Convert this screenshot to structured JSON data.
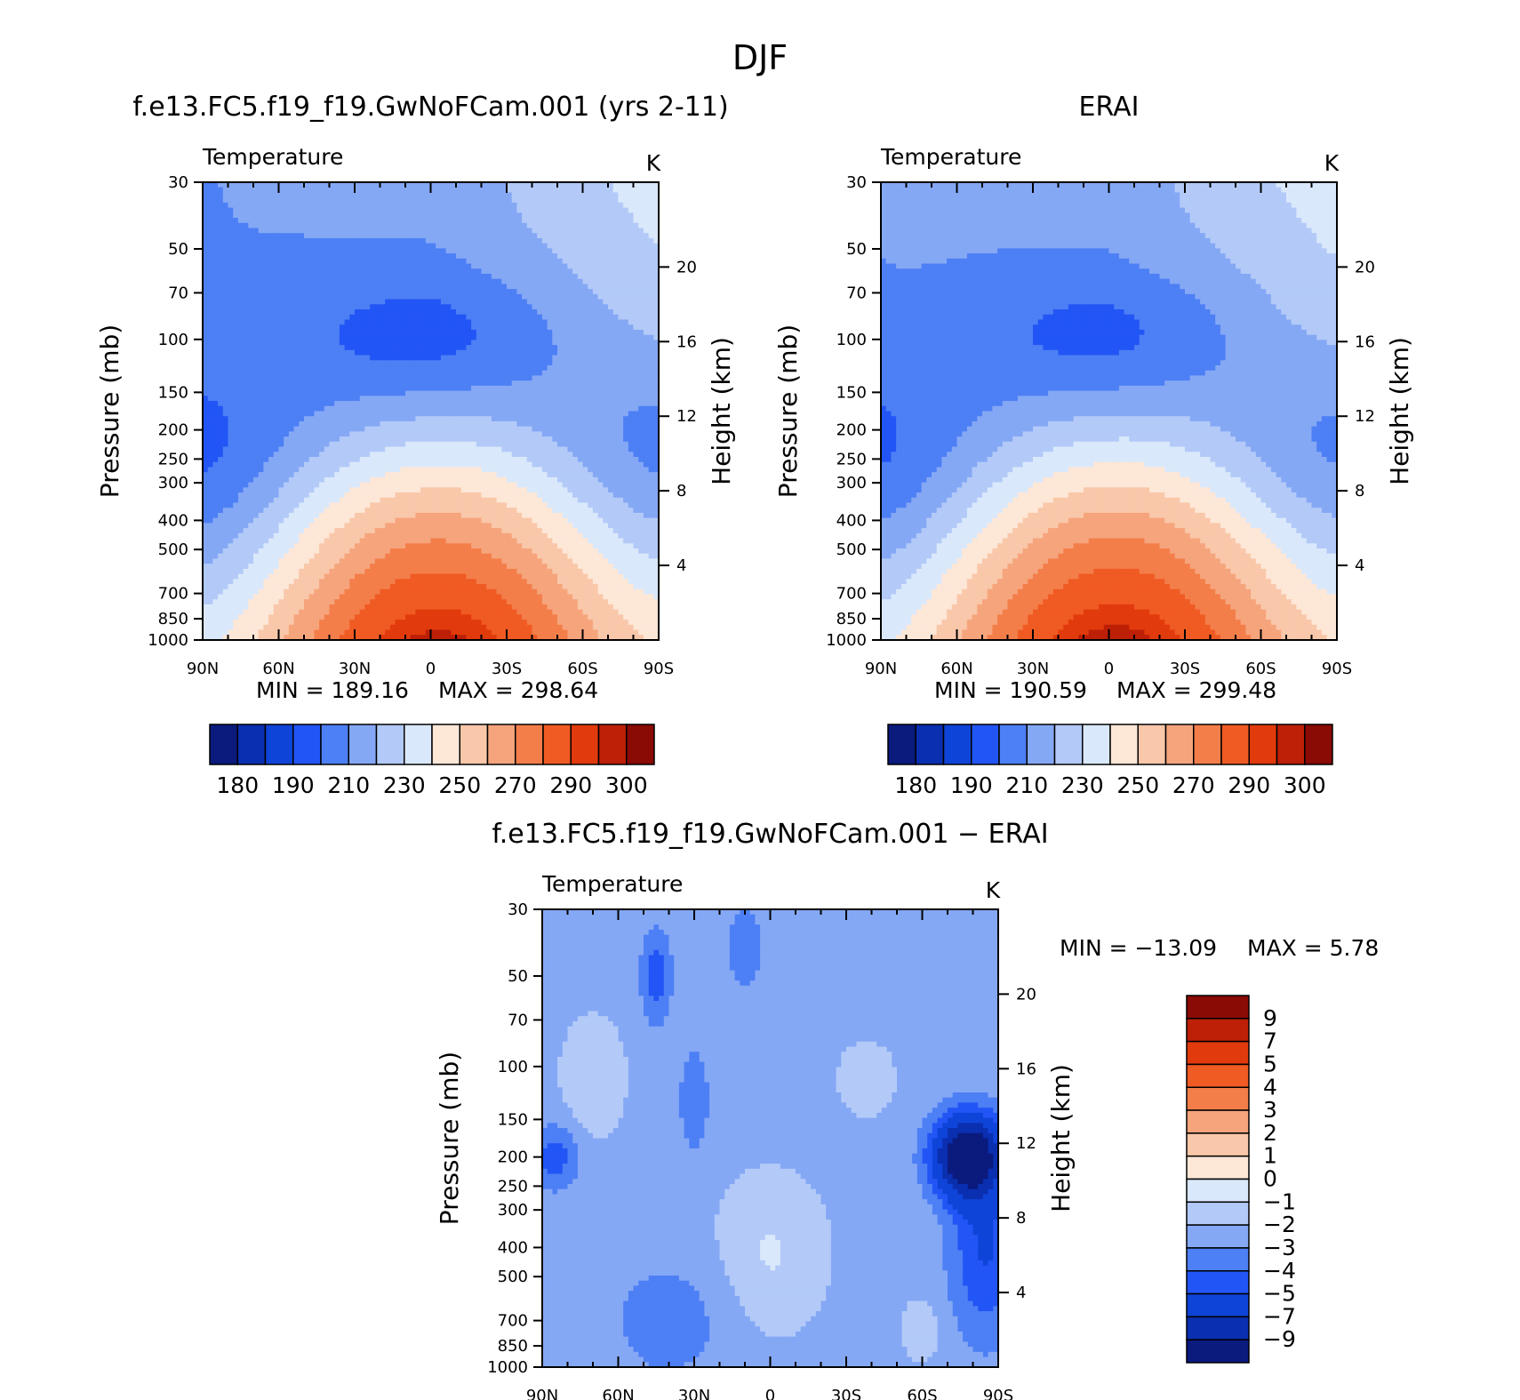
{
  "season": "DJF",
  "level_ticks": [
    "30",
    "50",
    "70",
    "100",
    "150",
    "200",
    "250",
    "300",
    "400",
    "500",
    "700",
    "850",
    "1000"
  ],
  "lat_ticks": [
    "90N",
    "60N",
    "30N",
    "0",
    "30S",
    "60S",
    "90S"
  ],
  "height_ticks": [
    "20",
    "16",
    "12",
    "8",
    "4"
  ],
  "chart_data": [
    {
      "type": "heatmap",
      "title": "f.e13.FC5.f19_f19.GwNoFCam.001 (yrs 2-11)",
      "variable": "Temperature",
      "units": "K",
      "ylabel": "Pressure (mb)",
      "y2label": "Height (km)",
      "min_label": "MIN = 189.16",
      "max_label": "MAX = 298.64",
      "x": [
        90,
        60,
        30,
        0,
        -30,
        -60,
        -90
      ],
      "ylim": [
        1000,
        30
      ],
      "levels": [
        175,
        180,
        185,
        190,
        200,
        210,
        220,
        230,
        240,
        250,
        260,
        270,
        280,
        290,
        295,
        300,
        305
      ],
      "colorbar_labels": [
        "180",
        "190",
        "210",
        "230",
        "250",
        "270",
        "290",
        "300"
      ],
      "colors": [
        "#0a1a7d",
        "#0a2fb0",
        "#0f44d9",
        "#2255f5",
        "#4d7ff5",
        "#85a8f5",
        "#b3caf8",
        "#dae8fb",
        "#fde7d7",
        "#f9c7a9",
        "#f6a47c",
        "#f37e4a",
        "#f05a23",
        "#e13a0c",
        "#bd1f07",
        "#8a0a05"
      ]
    },
    {
      "type": "heatmap",
      "title": "ERAI",
      "variable": "Temperature",
      "units": "K",
      "ylabel": "Pressure (mb)",
      "y2label": "Height (km)",
      "min_label": "MIN = 190.59",
      "max_label": "MAX = 299.48",
      "x": [
        90,
        60,
        30,
        0,
        -30,
        -60,
        -90
      ],
      "ylim": [
        1000,
        30
      ],
      "levels": [
        175,
        180,
        185,
        190,
        200,
        210,
        220,
        230,
        240,
        250,
        260,
        270,
        280,
        290,
        295,
        300,
        305
      ],
      "colorbar_labels": [
        "180",
        "190",
        "210",
        "230",
        "250",
        "270",
        "290",
        "300"
      ],
      "colors": [
        "#0a1a7d",
        "#0a2fb0",
        "#0f44d9",
        "#2255f5",
        "#4d7ff5",
        "#85a8f5",
        "#b3caf8",
        "#dae8fb",
        "#fde7d7",
        "#f9c7a9",
        "#f6a47c",
        "#f37e4a",
        "#f05a23",
        "#e13a0c",
        "#bd1f07",
        "#8a0a05"
      ]
    },
    {
      "type": "heatmap",
      "title": "f.e13.FC5.f19_f19.GwNoFCam.001 − ERAI",
      "variable": "Temperature",
      "units": "K",
      "ylabel": "Pressure (mb)",
      "y2label": "Height (km)",
      "min_label": "MIN = −13.09",
      "max_label": "MAX = 5.78",
      "x": [
        90,
        60,
        30,
        0,
        -30,
        -60,
        -90
      ],
      "ylim": [
        1000,
        30
      ],
      "levels": [
        -13,
        -9,
        -7,
        -5,
        -4,
        -3,
        -2,
        -1,
        0,
        1,
        2,
        3,
        4,
        5,
        7,
        9,
        13
      ],
      "colorbar_labels": [
        "9",
        "7",
        "5",
        "4",
        "3",
        "2",
        "1",
        "0",
        "−1",
        "−2",
        "−3",
        "−4",
        "−5",
        "−7",
        "−9"
      ],
      "colors": [
        "#0a1a7d",
        "#0a2fb0",
        "#0f44d9",
        "#2255f5",
        "#4d7ff5",
        "#85a8f5",
        "#b3caf8",
        "#dae8fb",
        "#fde7d7",
        "#f9c7a9",
        "#f6a47c",
        "#f37e4a",
        "#f05a23",
        "#e13a0c",
        "#bd1f07",
        "#8a0a05"
      ]
    }
  ]
}
